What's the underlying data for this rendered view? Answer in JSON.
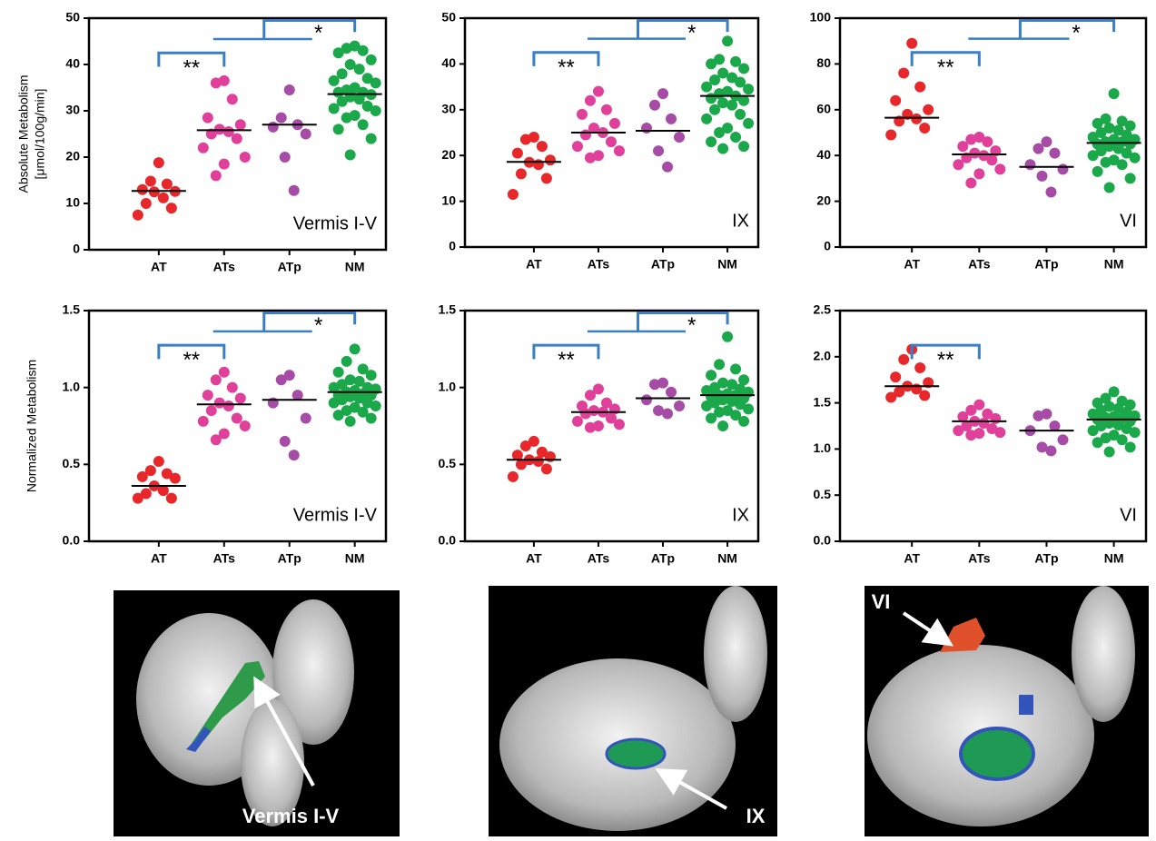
{
  "chart_data": [
    {
      "type": "strip",
      "ylabel": [
        "Absolute Metabolism",
        "[μmol/100g/min]"
      ],
      "annotation": "Vermis I-V",
      "categories": [
        "AT",
        "ATs",
        "ATp",
        "NM"
      ],
      "colors": [
        "#e8272b",
        "#e0409a",
        "#a64ca6",
        "#1aa84a"
      ],
      "values": [
        [
          18.8,
          14.8,
          14.2,
          13,
          12.6,
          12.5,
          11.2,
          10,
          9,
          7.5
        ],
        [
          36.5,
          36,
          32.5,
          28.5,
          27,
          26,
          25.5,
          25,
          24,
          22,
          20,
          18.5,
          16
        ],
        [
          34.5,
          28.5,
          27,
          26.5,
          25,
          20,
          12.8
        ],
        [
          44,
          43.5,
          43,
          42.5,
          41,
          40,
          39,
          38,
          37,
          36.5,
          36,
          35,
          34.5,
          34,
          34,
          33.5,
          33,
          32.5,
          32,
          31,
          30.5,
          30,
          29,
          28.5,
          27,
          26,
          24,
          20.5
        ]
      ],
      "means": [
        12.7,
        25.8,
        27,
        33.6
      ],
      "significance": [
        "**",
        "*"
      ],
      "ylim": [
        0,
        50
      ],
      "yticks": [
        0,
        10,
        20,
        30,
        40,
        50
      ]
    },
    {
      "type": "strip",
      "annotation": "IX",
      "categories": [
        "AT",
        "ATs",
        "ATp",
        "NM"
      ],
      "colors": [
        "#e8272b",
        "#e0409a",
        "#a64ca6",
        "#1aa84a"
      ],
      "values": [
        [
          24,
          23.5,
          22,
          20.5,
          19,
          18.5,
          18,
          16,
          15,
          11.5
        ],
        [
          34,
          32,
          30,
          29,
          27,
          26,
          25,
          24.5,
          23,
          22,
          21,
          20,
          19.5
        ],
        [
          33.5,
          31,
          28,
          26,
          24,
          21,
          17.5
        ],
        [
          45,
          41,
          40.5,
          40,
          39,
          38,
          37,
          36.5,
          36,
          35,
          34.5,
          34,
          33.5,
          33,
          32.5,
          32,
          31.5,
          31,
          30,
          29,
          28,
          27,
          26,
          25,
          24,
          23,
          22,
          21.5
        ]
      ],
      "means": [
        18.6,
        25,
        25.4,
        33
      ],
      "significance": [
        "**",
        "*"
      ],
      "ylim": [
        0,
        50
      ],
      "yticks": [
        0,
        10,
        20,
        30,
        40,
        50
      ]
    },
    {
      "type": "strip",
      "annotation": "VI",
      "categories": [
        "AT",
        "ATs",
        "ATp",
        "NM"
      ],
      "colors": [
        "#e8272b",
        "#e0409a",
        "#a64ca6",
        "#1aa84a"
      ],
      "values": [
        [
          89,
          76,
          70,
          64,
          60,
          58,
          56,
          55,
          52,
          49
        ],
        [
          48,
          47,
          46,
          44,
          42,
          41,
          40,
          39,
          38,
          36,
          34,
          32,
          28
        ],
        [
          46,
          43,
          41,
          36,
          34,
          31,
          24
        ],
        [
          67,
          56,
          55,
          54,
          53,
          52,
          51,
          50,
          49,
          48,
          47,
          47,
          46,
          46,
          45,
          45,
          44,
          43,
          42,
          41,
          40,
          39,
          38,
          37,
          36,
          33,
          30,
          26
        ]
      ],
      "means": [
        56.5,
        40.5,
        35,
        45.5
      ],
      "significance": [
        "**",
        "*"
      ],
      "ylim": [
        0,
        100
      ],
      "yticks": [
        0,
        20,
        40,
        60,
        80,
        100
      ]
    },
    {
      "type": "strip",
      "ylabel": [
        "Normalized Metabolism"
      ],
      "annotation": "Vermis I-V",
      "categories": [
        "AT",
        "ATs",
        "ATp",
        "NM"
      ],
      "colors": [
        "#e8272b",
        "#e0409a",
        "#a64ca6",
        "#1aa84a"
      ],
      "values": [
        [
          0.52,
          0.46,
          0.44,
          0.42,
          0.41,
          0.36,
          0.33,
          0.31,
          0.28,
          0.28
        ],
        [
          1.1,
          1.05,
          1.0,
          0.95,
          0.93,
          0.9,
          0.88,
          0.85,
          0.8,
          0.78,
          0.75,
          0.7,
          0.66
        ],
        [
          1.08,
          1.05,
          0.95,
          0.9,
          0.8,
          0.65,
          0.56
        ],
        [
          1.25,
          1.17,
          1.12,
          1.1,
          1.08,
          1.05,
          1.04,
          1.02,
          1.0,
          1.0,
          0.99,
          0.98,
          0.97,
          0.96,
          0.95,
          0.95,
          0.94,
          0.93,
          0.92,
          0.9,
          0.9,
          0.88,
          0.87,
          0.85,
          0.84,
          0.82,
          0.8,
          0.78
        ]
      ],
      "means": [
        0.36,
        0.89,
        0.92,
        0.97
      ],
      "significance": [
        "**",
        "*"
      ],
      "ylim": [
        0,
        1.5
      ],
      "yticks": [
        {
          "value": 0,
          "label": "0.0"
        },
        0.5,
        {
          "value": 1,
          "label": "1.0"
        },
        1.5
      ]
    },
    {
      "type": "strip",
      "annotation": "IX",
      "categories": [
        "AT",
        "ATs",
        "ATp",
        "NM"
      ],
      "colors": [
        "#e8272b",
        "#e0409a",
        "#a64ca6",
        "#1aa84a"
      ],
      "values": [
        [
          0.65,
          0.62,
          0.58,
          0.56,
          0.55,
          0.53,
          0.52,
          0.5,
          0.47,
          0.42
        ],
        [
          0.99,
          0.95,
          0.9,
          0.88,
          0.86,
          0.85,
          0.84,
          0.83,
          0.8,
          0.78,
          0.76,
          0.75,
          0.74
        ],
        [
          1.03,
          1.02,
          0.97,
          0.92,
          0.88,
          0.85,
          0.83
        ],
        [
          1.33,
          1.15,
          1.12,
          1.08,
          1.05,
          1.03,
          1.02,
          1.0,
          0.99,
          0.98,
          0.97,
          0.96,
          0.95,
          0.95,
          0.94,
          0.93,
          0.92,
          0.91,
          0.9,
          0.89,
          0.88,
          0.86,
          0.85,
          0.84,
          0.82,
          0.8,
          0.78,
          0.75
        ]
      ],
      "means": [
        0.53,
        0.84,
        0.93,
        0.95
      ],
      "significance": [
        "**",
        "*"
      ],
      "ylim": [
        0,
        1.5
      ],
      "yticks": [
        {
          "value": 0,
          "label": "0.0"
        },
        0.5,
        {
          "value": 1,
          "label": "1.0"
        },
        1.5
      ]
    },
    {
      "type": "strip",
      "annotation": "VI",
      "categories": [
        "AT",
        "ATs",
        "ATp",
        "NM"
      ],
      "colors": [
        "#e8272b",
        "#e0409a",
        "#a64ca6",
        "#1aa84a"
      ],
      "values": [
        [
          2.08,
          1.97,
          1.88,
          1.78,
          1.72,
          1.68,
          1.65,
          1.62,
          1.58,
          1.56
        ],
        [
          1.48,
          1.42,
          1.38,
          1.35,
          1.33,
          1.3,
          1.28,
          1.25,
          1.22,
          1.2,
          1.18,
          1.17,
          1.15
        ],
        [
          1.38,
          1.36,
          1.25,
          1.2,
          1.1,
          1.02,
          0.98
        ],
        [
          1.62,
          1.55,
          1.52,
          1.5,
          1.48,
          1.46,
          1.44,
          1.42,
          1.4,
          1.38,
          1.36,
          1.35,
          1.34,
          1.33,
          1.32,
          1.3,
          1.28,
          1.26,
          1.25,
          1.22,
          1.2,
          1.18,
          1.15,
          1.12,
          1.1,
          1.07,
          1.02,
          0.97
        ]
      ],
      "means": [
        1.68,
        1.3,
        1.2,
        1.32
      ],
      "significance": [
        "**"
      ],
      "ylim": [
        0,
        2.5
      ],
      "yticks": [
        {
          "value": 0,
          "label": "0.0"
        },
        0.5,
        {
          "value": 1,
          "label": "1.0"
        },
        1.5,
        {
          "value": 2,
          "label": "2.0"
        },
        2.5
      ]
    }
  ],
  "images": [
    {
      "label": "Vermis I-V"
    },
    {
      "label": "IX"
    },
    {
      "label": "VI"
    }
  ]
}
